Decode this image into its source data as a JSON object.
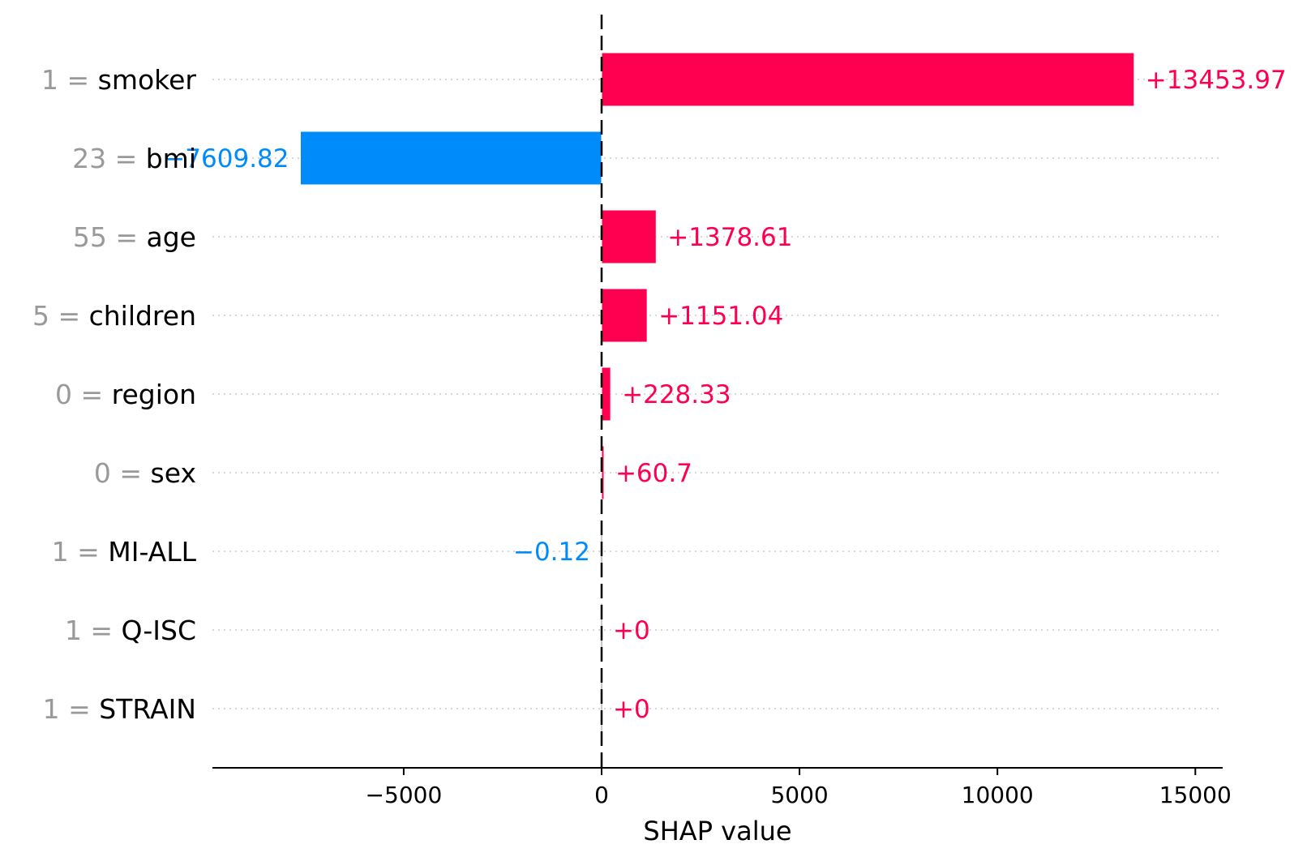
{
  "chart_data": {
    "type": "bar",
    "orientation": "horizontal",
    "title": "",
    "xlabel": "SHAP value",
    "ylabel": "",
    "xlim": [
      -9800,
      15700
    ],
    "grid": false,
    "legend": "none",
    "colors": {
      "positive": "#ff0051",
      "negative": "#008bfb",
      "feature_value": "#999999",
      "feature_name": "#000000",
      "zero_bar": "#c8c8c8"
    },
    "xticks": [
      {
        "value": -5000,
        "label": "−5000"
      },
      {
        "value": 0,
        "label": "0"
      },
      {
        "value": 5000,
        "label": "5000"
      },
      {
        "value": 10000,
        "label": "10000"
      },
      {
        "value": 15000,
        "label": "15000"
      }
    ],
    "features": [
      {
        "value_text": "1",
        "name": "smoker",
        "shap": 13453.97,
        "label": "+13453.97"
      },
      {
        "value_text": "23",
        "name": "bmi",
        "shap": -7609.82,
        "label": "−7609.82"
      },
      {
        "value_text": "55",
        "name": "age",
        "shap": 1378.61,
        "label": "+1378.61"
      },
      {
        "value_text": "5",
        "name": "children",
        "shap": 1151.04,
        "label": "+1151.04"
      },
      {
        "value_text": "0",
        "name": "region",
        "shap": 228.33,
        "label": "+228.33"
      },
      {
        "value_text": "0",
        "name": "sex",
        "shap": 60.7,
        "label": "+60.7"
      },
      {
        "value_text": "1",
        "name": "MI-ALL",
        "shap": -0.12,
        "label": "−0.12"
      },
      {
        "value_text": "1",
        "name": "Q-ISC",
        "shap": 0,
        "label": "+0"
      },
      {
        "value_text": "1",
        "name": "STRAIN",
        "shap": 0,
        "label": "+0"
      }
    ]
  }
}
